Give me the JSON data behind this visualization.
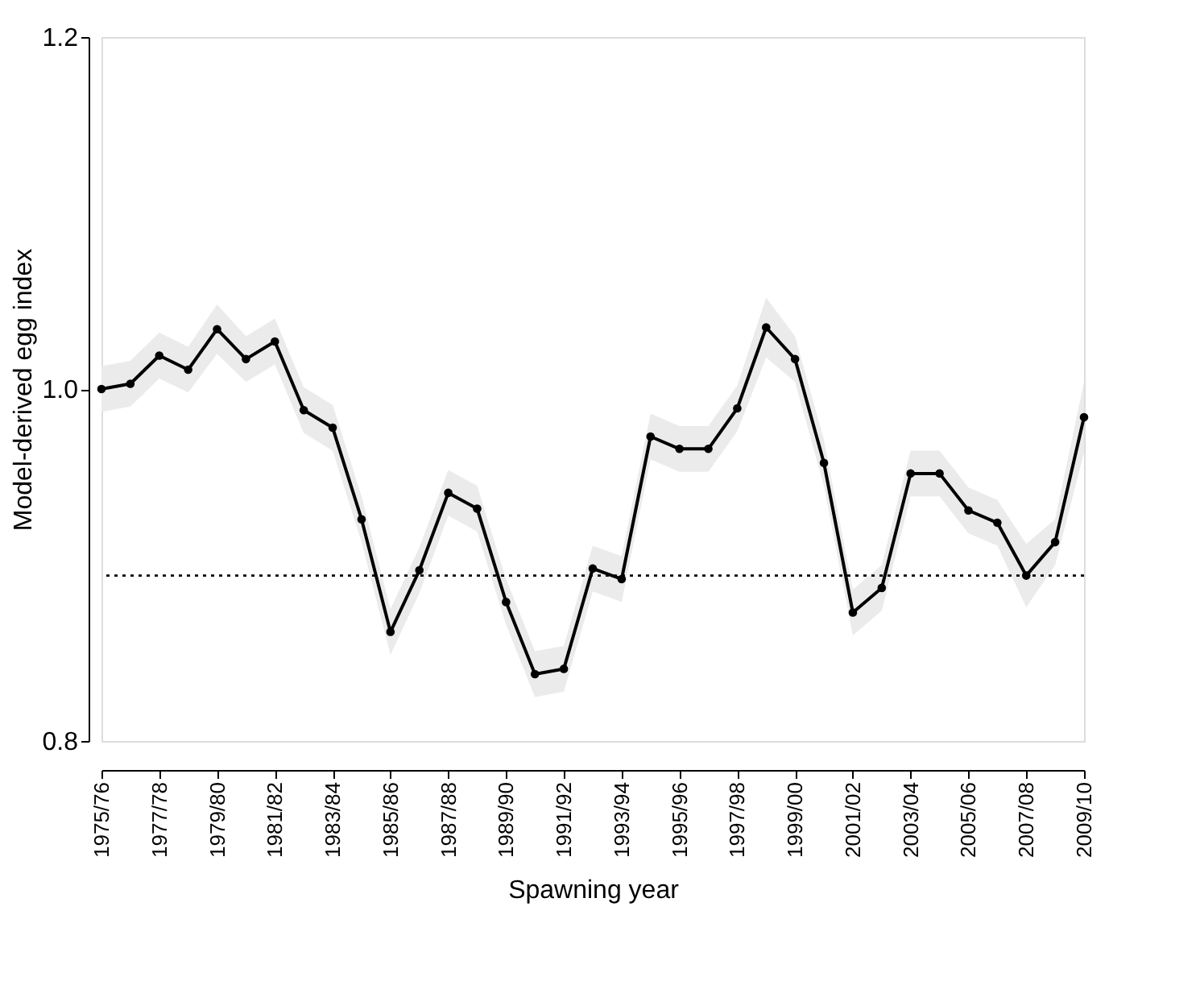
{
  "chart_data": {
    "type": "line",
    "xlabel": "Spawning year",
    "ylabel": "Model-derived egg index",
    "categories": [
      "1975/76",
      null,
      "1977/78",
      null,
      "1979/80",
      null,
      "1981/82",
      null,
      "1983/84",
      null,
      "1985/86",
      null,
      "1987/88",
      null,
      "1989/90",
      null,
      "1991/92",
      null,
      "1993/94",
      null,
      "1995/96",
      null,
      "1997/98",
      null,
      "1999/00",
      null,
      "2001/02",
      null,
      "2003/04",
      null,
      "2005/06",
      null,
      "2007/08",
      null,
      "2009/10"
    ],
    "series": [
      {
        "color": "#000000",
        "values": [
          1.0,
          1.003,
          1.019,
          1.011,
          1.034,
          1.017,
          1.027,
          0.988,
          0.978,
          0.926,
          0.862,
          0.897,
          0.941,
          0.932,
          0.879,
          0.838,
          0.841,
          0.898,
          0.892,
          0.973,
          0.966,
          0.966,
          0.989,
          1.035,
          1.017,
          0.958,
          0.873,
          0.887,
          0.952,
          0.952,
          0.931,
          0.924,
          0.894,
          0.913,
          0.984
        ],
        "upper": [
          1.013,
          1.016,
          1.032,
          1.024,
          1.048,
          1.03,
          1.04,
          1.001,
          0.991,
          0.939,
          0.875,
          0.91,
          0.954,
          0.945,
          0.892,
          0.851,
          0.854,
          0.911,
          0.905,
          0.986,
          0.979,
          0.979,
          1.002,
          1.052,
          1.03,
          0.971,
          0.886,
          0.9,
          0.965,
          0.965,
          0.944,
          0.937,
          0.912,
          0.926,
          1.004
        ],
        "lower": [
          0.987,
          0.99,
          1.006,
          0.998,
          1.02,
          1.004,
          1.014,
          0.975,
          0.965,
          0.913,
          0.849,
          0.884,
          0.928,
          0.919,
          0.866,
          0.825,
          0.828,
          0.885,
          0.879,
          0.96,
          0.953,
          0.953,
          0.976,
          1.018,
          1.004,
          0.945,
          0.86,
          0.874,
          0.939,
          0.939,
          0.918,
          0.911,
          0.876,
          0.9,
          0.964
        ]
      }
    ],
    "ylim": [
      0.8,
      1.2
    ],
    "yticks": [
      {
        "value": 0.8,
        "label": "0.8"
      },
      {
        "value": 1.0,
        "label": "1.0"
      },
      {
        "value": 1.2,
        "label": "1.2"
      }
    ],
    "ref_lines": [
      {
        "axis": "y",
        "value": 0.894,
        "line_style": "dotted",
        "color": "#000000"
      }
    ],
    "marker": "circle",
    "line_style": "solid",
    "grid": false
  }
}
